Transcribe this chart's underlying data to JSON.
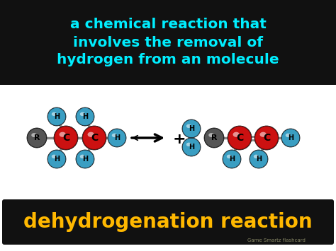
{
  "title_text": "a chemical reaction that\ninvolves the removal of\nhydrogen from an molecule",
  "title_color": "#00EEFF",
  "title_bg": "#111111",
  "bottom_text": "dehydrogenation reaction",
  "bottom_text_color": "#FFB800",
  "bottom_bg": "#111111",
  "middle_bg": "#FFFFFF",
  "watermark": "Game Smartz flashcard",
  "watermark_color": "#888866",
  "h_color": "#3A9EC2",
  "h_color_dark": "#1A6080",
  "c_color": "#CC1111",
  "c_color_dark": "#880000",
  "r_color": "#555555",
  "r_color_dark": "#222222",
  "r_h": 13,
  "r_c": 17,
  "r_r": 14,
  "my": 195,
  "figw": 4.74,
  "figh": 3.55,
  "dpi": 100
}
